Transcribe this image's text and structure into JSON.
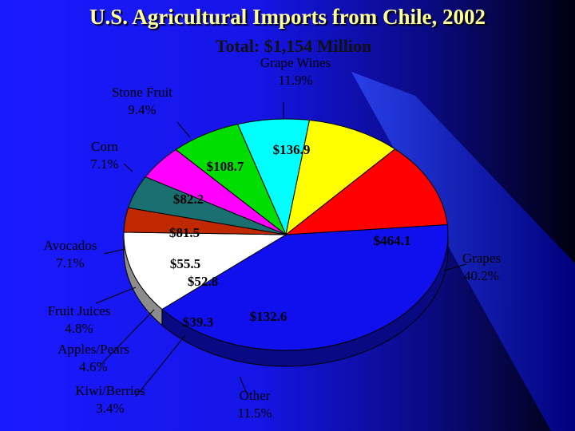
{
  "chart_data": {
    "type": "pie",
    "title": "U.S. Agricultural Imports from Chile, 2002",
    "subtitle": "Total:  $1,154 Million",
    "slices": [
      {
        "name": "Grapes",
        "percent": "40.2%",
        "value": 464.1,
        "value_label": "$464.1",
        "color": "#1010ee"
      },
      {
        "name": "Other",
        "percent": "11.5%",
        "value": 132.6,
        "value_label": "$132.6",
        "color": "#ffffff"
      },
      {
        "name": "Kiwi/Berries",
        "percent": "3.4%",
        "value": 39.3,
        "value_label": "$39.3",
        "color": "#c02800"
      },
      {
        "name": "Apples/Pears",
        "percent": "4.6%",
        "value": 52.8,
        "value_label": "$52.8",
        "color": "#1a7070"
      },
      {
        "name": "Fruit Juices",
        "percent": "4.8%",
        "value": 55.5,
        "value_label": "$55.5",
        "color": "#ff00ff"
      },
      {
        "name": "Avocados",
        "percent": "7.1%",
        "value": 81.5,
        "value_label": "$81.5",
        "color": "#00dd00"
      },
      {
        "name": "Corn",
        "percent": "7.1%",
        "value": 82.2,
        "value_label": "$82.2",
        "color": "#00ffff"
      },
      {
        "name": "Stone Fruit",
        "percent": "9.4%",
        "value": 108.7,
        "value_label": "$108.7",
        "color": "#ffff00"
      },
      {
        "name": "Grape Wines",
        "percent": "11.9%",
        "value": 136.9,
        "value_label": "$136.9",
        "color": "#ff0000"
      }
    ]
  }
}
